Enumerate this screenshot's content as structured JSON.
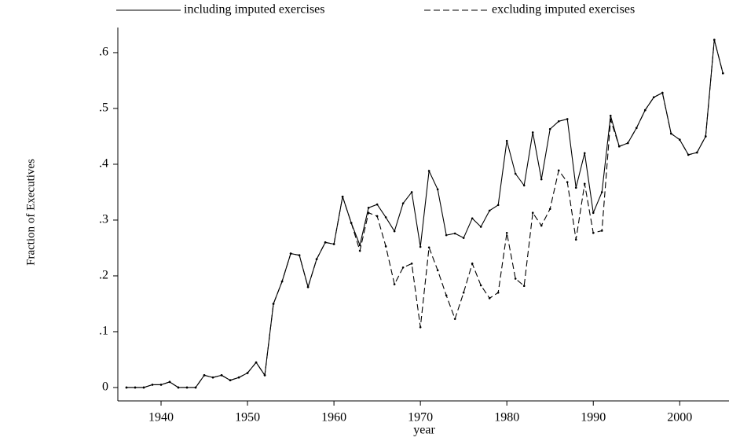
{
  "chart_data": {
    "type": "line",
    "y_label": "Fraction of Executives",
    "x_label": "year",
    "x": [
      1936,
      1937,
      1938,
      1939,
      1940,
      1941,
      1942,
      1943,
      1944,
      1945,
      1946,
      1947,
      1948,
      1949,
      1950,
      1951,
      1952,
      1953,
      1954,
      1955,
      1956,
      1957,
      1958,
      1959,
      1960,
      1961,
      1962,
      1963,
      1964,
      1965,
      1966,
      1967,
      1968,
      1969,
      1970,
      1971,
      1972,
      1973,
      1974,
      1975,
      1976,
      1977,
      1978,
      1979,
      1980,
      1981,
      1982,
      1983,
      1984,
      1985,
      1986,
      1987,
      1988,
      1989,
      1990,
      1991,
      1992,
      1993,
      1994,
      1995,
      1996,
      1997,
      1998,
      1999,
      2000,
      2001,
      2002,
      2003,
      2004,
      2005
    ],
    "series": [
      {
        "name": "including imputed exercises",
        "color": "#000000",
        "line_style": "solid",
        "values": [
          0,
          0,
          0,
          0.005,
          0.005,
          0.01,
          0,
          0,
          0,
          0.022,
          0.018,
          0.022,
          0.013,
          0.018,
          0.026,
          0.045,
          0.022,
          0.15,
          0.19,
          0.24,
          0.237,
          0.18,
          0.23,
          0.26,
          0.257,
          0.342,
          0.295,
          0.255,
          0.322,
          0.328,
          0.305,
          0.28,
          0.33,
          0.35,
          0.252,
          0.388,
          0.355,
          0.273,
          0.276,
          0.268,
          0.303,
          0.288,
          0.317,
          0.327,
          0.442,
          0.383,
          0.362,
          0.457,
          0.373,
          0.463,
          0.477,
          0.481,
          0.358,
          0.42,
          0.313,
          0.35,
          0.487,
          0.432,
          0.438,
          0.465,
          0.497,
          0.52,
          0.528,
          0.455,
          0.444,
          0.417,
          0.421,
          0.45,
          0.623,
          0.563
        ]
      },
      {
        "name": "excluding imputed exercises",
        "color": "#000000",
        "line_style": "dashed",
        "values": [
          0,
          0,
          0,
          0.005,
          0.005,
          0.01,
          0,
          0,
          0,
          0.022,
          0.018,
          0.022,
          0.013,
          0.018,
          0.026,
          0.045,
          0.022,
          0.15,
          0.19,
          0.24,
          0.237,
          0.18,
          0.23,
          0.26,
          0.257,
          0.342,
          0.295,
          0.245,
          0.313,
          0.307,
          0.253,
          0.185,
          0.215,
          0.222,
          0.108,
          0.251,
          0.21,
          0.165,
          0.123,
          0.17,
          0.222,
          0.183,
          0.16,
          0.17,
          0.277,
          0.195,
          0.182,
          0.313,
          0.29,
          0.32,
          0.389,
          0.368,
          0.265,
          0.365,
          0.277,
          0.281,
          0.48,
          0.432,
          0.438,
          0.465,
          0.497,
          0.52,
          0.528,
          0.455,
          0.444,
          0.417,
          0.421,
          0.45,
          0.623,
          0.563
        ]
      }
    ],
    "xlim": [
      1935,
      2005.7
    ],
    "xticks": [
      1940,
      1950,
      1960,
      1970,
      1980,
      1990,
      2000
    ],
    "ylim": [
      -0.024,
      0.645
    ],
    "yticks": [
      0,
      {
        "value": 0.1,
        "label": ".1"
      },
      {
        "value": 0.2,
        "label": ".2"
      },
      {
        "value": 0.3,
        "label": ".3"
      },
      {
        "value": 0.4,
        "label": ".4"
      },
      {
        "value": 0.5,
        "label": ".5"
      },
      {
        "value": 0.6,
        "label": ".6"
      }
    ],
    "grid": false,
    "legend": "top"
  }
}
